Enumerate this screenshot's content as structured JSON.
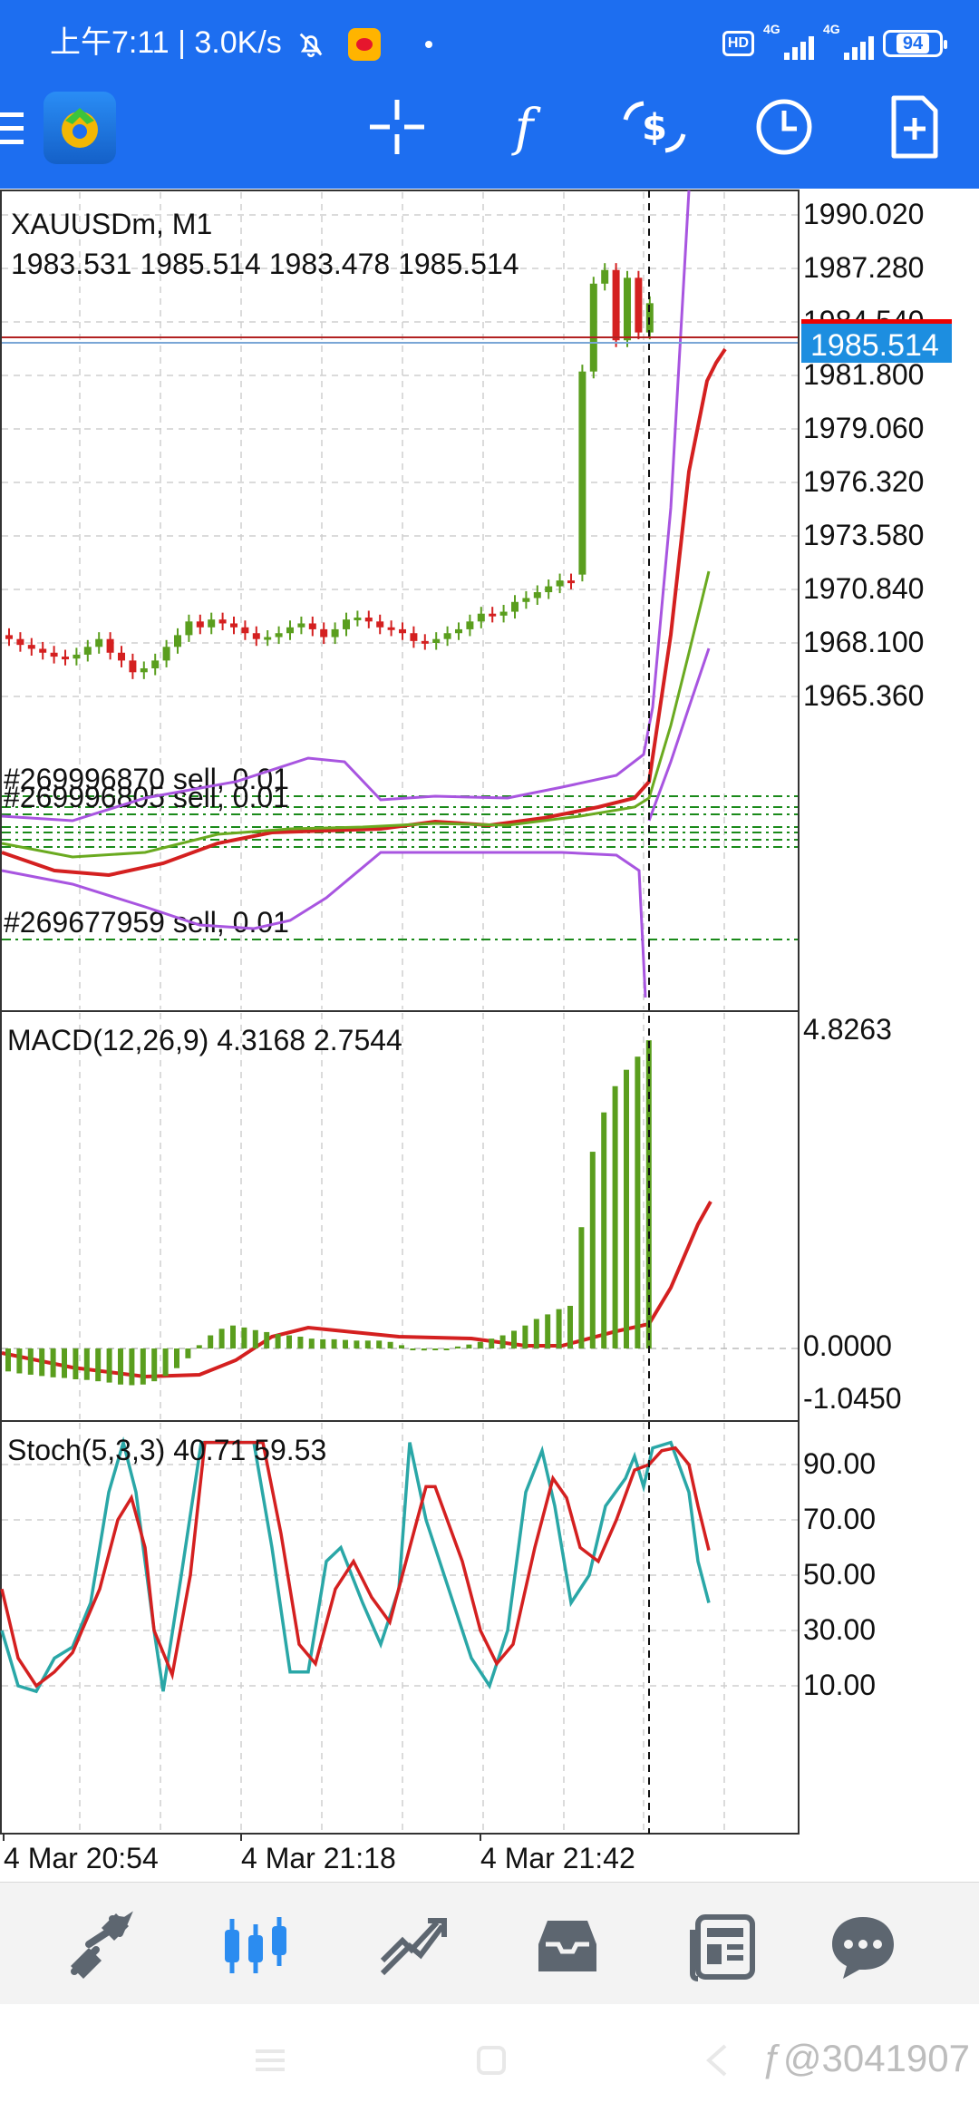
{
  "status_bar": {
    "time": "上午7:11",
    "speed": "3.0K/s",
    "network_1": "4G",
    "network_2": "4G",
    "battery": "94"
  },
  "toolbar": {
    "icons": [
      "menu-icon",
      "app-logo",
      "crosshair-icon",
      "indicators-icon",
      "trade-icon",
      "timeframe-icon",
      "new-order-icon"
    ]
  },
  "chart": {
    "symbol": "XAUUSDm, M1",
    "ohlc": "1983.531 1985.514 1983.478 1985.514",
    "current_price": "1985.514",
    "price_ticks": [
      "1990.020",
      "1987.280",
      "1984.540",
      "1981.800",
      "1979.060",
      "1976.320",
      "1973.580",
      "1970.840",
      "1968.100",
      "1965.360"
    ],
    "orders": [
      "#269996870 sell, 0.01",
      "#269996805 sell, 0.01",
      "#269677959 sell, 0.01"
    ],
    "macd_label": "MACD(12,26,9) 4.3168 2.7544",
    "macd_ticks": [
      "4.8263",
      "0.0000",
      "-1.0450"
    ],
    "stoch_label": "Stoch(5,3,3) 40.71 59.53",
    "stoch_ticks": [
      "90.00",
      "70.00",
      "50.00",
      "30.00",
      "10.00"
    ],
    "time_labels": [
      "4 Mar 20:54",
      "4 Mar 21:18",
      "4 Mar 21:42"
    ],
    "colors": {
      "bull": "#5a9e1e",
      "bear": "#d42020",
      "ma_fast": "#d42020",
      "ma_slow": "#6aaa20",
      "bands": "#a855e0",
      "stoch_main": "#2aa7a7",
      "stoch_signal": "#d42020",
      "price_tag": "#1d6ef0"
    }
  },
  "bottom_nav": {
    "items": [
      "quotes-icon",
      "chart-icon",
      "trade-icon",
      "history-icon",
      "news-icon",
      "messages-icon"
    ],
    "active": "chart-icon"
  },
  "watermark": "@3041907"
}
